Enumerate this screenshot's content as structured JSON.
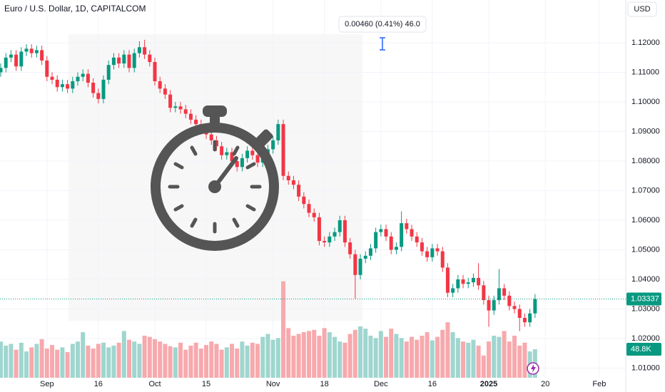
{
  "chart_data": {
    "type": "candlestick",
    "title": "Euro / U.S. Dollar, 1D, CAPITALCOM",
    "currency": "USD",
    "tooltip": "0.00460 (0.41%) 46.0",
    "up_color": "#089981",
    "down_color": "#f23645",
    "up_volume_color": "#9fd6cf",
    "down_volume_color": "#f7a9ad",
    "grid": true,
    "xlim": [
      -0.14,
      121.66
    ],
    "xticks": [
      {
        "value": 9,
        "label": "Sep"
      },
      {
        "value": 19,
        "label": "16"
      },
      {
        "value": 30,
        "label": "Oct"
      },
      {
        "value": 40,
        "label": "15"
      },
      {
        "value": 53,
        "label": "Nov"
      },
      {
        "value": 63,
        "label": "18"
      },
      {
        "value": 74,
        "label": "Dec"
      },
      {
        "value": 84,
        "label": "16"
      },
      {
        "value": 95,
        "label": "2025"
      },
      {
        "value": 106,
        "label": "20"
      },
      {
        "value": 116.5,
        "label": "Feb"
      }
    ],
    "ylim": [
      1.00675,
      1.13446
    ],
    "yticks": [
      {
        "value": 1.12,
        "label": "1.12000"
      },
      {
        "value": 1.11,
        "label": "1.11000"
      },
      {
        "value": 1.1,
        "label": "1.10000"
      },
      {
        "value": 1.09,
        "label": "1.09000"
      },
      {
        "value": 1.08,
        "label": "1.08000"
      },
      {
        "value": 1.07,
        "label": "1.07000"
      },
      {
        "value": 1.06,
        "label": "1.06000"
      },
      {
        "value": 1.05,
        "label": "1.05000"
      },
      {
        "value": 1.04,
        "label": "1.04000"
      },
      {
        "value": 1.03,
        "label": "1.03000"
      },
      {
        "value": 1.02,
        "label": "1.02000"
      },
      {
        "value": 1.01,
        "label": "1.01000"
      }
    ],
    "volume_lim": [
      0,
      183000
    ],
    "last_volume_label": "48.8K",
    "open": [
      1.11,
      1.1115,
      1.115,
      1.116,
      1.112,
      1.117,
      1.118,
      1.1165,
      1.1175,
      1.114,
      1.1085,
      1.1075,
      1.105,
      1.106,
      1.1045,
      1.107,
      1.1085,
      1.1095,
      1.1065,
      1.103,
      1.101,
      1.1075,
      1.1125,
      1.115,
      1.113,
      1.116,
      1.1115,
      1.1165,
      1.1185,
      1.116,
      1.1135,
      1.107,
      1.1045,
      1.1025,
      1.098,
      1.0985,
      1.0975,
      1.096,
      1.094,
      1.0925,
      1.0905,
      1.089,
      1.087,
      1.085,
      1.082,
      1.083,
      1.08,
      1.078,
      1.081,
      1.0835,
      1.082,
      1.0795,
      1.0815,
      1.084,
      1.087,
      1.0925,
      1.075,
      1.0735,
      1.072,
      1.068,
      1.0655,
      1.0625,
      1.061,
      1.053,
      1.0525,
      1.0545,
      1.056,
      1.06,
      1.0525,
      1.0485,
      1.0415,
      1.047,
      1.048,
      1.0505,
      1.056,
      1.057,
      1.0545,
      1.05,
      1.051,
      1.059,
      1.057,
      1.0545,
      1.0525,
      1.0495,
      1.0475,
      1.0505,
      1.0495,
      1.044,
      1.0355,
      1.037,
      1.04,
      1.0385,
      1.039,
      1.0405,
      1.038,
      1.033,
      1.0295,
      1.033,
      1.037,
      1.0345,
      1.031,
      1.03,
      1.027,
      1.0255,
      1.0285
    ],
    "high": [
      1.113,
      1.1165,
      1.1175,
      1.1175,
      1.1185,
      1.1195,
      1.1195,
      1.119,
      1.119,
      1.1155,
      1.11,
      1.109,
      1.1075,
      1.1075,
      1.1085,
      1.11,
      1.111,
      1.111,
      1.108,
      1.1045,
      1.109,
      1.114,
      1.1165,
      1.1165,
      1.1175,
      1.1175,
      1.118,
      1.1205,
      1.121,
      1.1175,
      1.115,
      1.1085,
      1.106,
      1.104,
      1.1,
      1.1,
      1.099,
      1.0975,
      1.0955,
      1.094,
      1.092,
      1.0905,
      1.0885,
      1.0865,
      1.0845,
      1.0845,
      1.0815,
      1.0825,
      1.085,
      1.085,
      1.0835,
      1.083,
      1.0855,
      1.0885,
      1.094,
      1.094,
      1.0765,
      1.075,
      1.0735,
      1.0695,
      1.067,
      1.064,
      1.0625,
      1.0545,
      1.056,
      1.0575,
      1.0615,
      1.0615,
      1.054,
      1.05,
      1.0485,
      1.0495,
      1.052,
      1.0575,
      1.0585,
      1.0585,
      1.056,
      1.0525,
      1.063,
      1.0605,
      1.0585,
      1.056,
      1.054,
      1.051,
      1.052,
      1.052,
      1.051,
      1.0455,
      1.0385,
      1.0415,
      1.0415,
      1.0405,
      1.042,
      1.0455,
      1.0395,
      1.0345,
      1.0345,
      1.0435,
      1.0385,
      1.036,
      1.0325,
      1.0315,
      1.0285,
      1.03,
      1.035
    ],
    "low": [
      1.1085,
      1.11,
      1.1135,
      1.1105,
      1.1105,
      1.1155,
      1.115,
      1.115,
      1.1125,
      1.107,
      1.106,
      1.1035,
      1.1035,
      1.103,
      1.103,
      1.1055,
      1.107,
      1.105,
      1.1015,
      1.0995,
      1.0995,
      1.106,
      1.111,
      1.1115,
      1.1115,
      1.11,
      1.11,
      1.115,
      1.1145,
      1.112,
      1.1055,
      1.103,
      1.101,
      1.0965,
      1.0965,
      1.096,
      1.0945,
      1.0925,
      1.091,
      1.089,
      1.0875,
      1.0855,
      1.0835,
      1.0805,
      1.0805,
      1.0785,
      1.0765,
      1.0765,
      1.0795,
      1.0805,
      1.078,
      1.078,
      1.08,
      1.0825,
      1.0855,
      1.0735,
      1.072,
      1.0705,
      1.0665,
      1.064,
      1.061,
      1.0595,
      1.0515,
      1.051,
      1.051,
      1.053,
      1.0545,
      1.051,
      1.047,
      1.0335,
      1.04,
      1.0455,
      1.0465,
      1.049,
      1.0545,
      1.053,
      1.0485,
      1.0485,
      1.0495,
      1.0555,
      1.053,
      1.051,
      1.048,
      1.046,
      1.046,
      1.048,
      1.0425,
      1.034,
      1.034,
      1.0355,
      1.037,
      1.037,
      1.0375,
      1.0365,
      1.0315,
      1.024,
      1.028,
      1.0315,
      1.033,
      1.0295,
      1.0285,
      1.0225,
      1.024,
      1.024,
      1.027
    ],
    "close": [
      1.1115,
      1.115,
      1.116,
      1.112,
      1.117,
      1.118,
      1.1165,
      1.1175,
      1.114,
      1.1085,
      1.1075,
      1.105,
      1.106,
      1.1045,
      1.107,
      1.1085,
      1.1095,
      1.1065,
      1.103,
      1.101,
      1.1075,
      1.1125,
      1.115,
      1.113,
      1.116,
      1.1115,
      1.1165,
      1.1185,
      1.116,
      1.1135,
      1.107,
      1.1045,
      1.1025,
      1.098,
      1.0985,
      1.0975,
      1.096,
      1.094,
      1.0925,
      1.0905,
      1.089,
      1.087,
      1.085,
      1.082,
      1.083,
      1.08,
      1.078,
      1.081,
      1.0835,
      1.082,
      1.0795,
      1.0815,
      1.084,
      1.087,
      1.0925,
      1.075,
      1.0735,
      1.072,
      1.068,
      1.0655,
      1.0625,
      1.061,
      1.053,
      1.0525,
      1.0545,
      1.056,
      1.06,
      1.0525,
      1.0485,
      1.0415,
      1.047,
      1.048,
      1.0505,
      1.056,
      1.057,
      1.0545,
      1.05,
      1.051,
      1.059,
      1.057,
      1.0545,
      1.0525,
      1.0495,
      1.0475,
      1.0505,
      1.0495,
      1.044,
      1.0355,
      1.037,
      1.04,
      1.0385,
      1.039,
      1.0405,
      1.038,
      1.033,
      1.0295,
      1.033,
      1.037,
      1.0345,
      1.031,
      1.03,
      1.027,
      1.0255,
      1.0285,
      1.03337
    ],
    "volume": [
      62000,
      55000,
      58000,
      48000,
      60000,
      45000,
      52000,
      58000,
      66000,
      50000,
      56000,
      48000,
      52000,
      44000,
      58000,
      62000,
      78000,
      55000,
      50000,
      58000,
      60000,
      52000,
      55000,
      60000,
      80000,
      65000,
      62000,
      58000,
      72000,
      70000,
      66000,
      62000,
      58000,
      54000,
      52000,
      60000,
      48000,
      55000,
      60000,
      50000,
      56000,
      62000,
      58000,
      48000,
      52000,
      58000,
      50000,
      62000,
      55000,
      60000,
      58000,
      70000,
      75000,
      65000,
      68000,
      165000,
      85000,
      72000,
      75000,
      78000,
      80000,
      82000,
      72000,
      85000,
      78000,
      70000,
      62000,
      60000,
      75000,
      82000,
      88000,
      84000,
      72000,
      68000,
      80000,
      70000,
      84000,
      75000,
      68000,
      62000,
      70000,
      65000,
      72000,
      78000,
      64000,
      70000,
      82000,
      95000,
      78000,
      68000,
      62000,
      60000,
      65000,
      55000,
      38000,
      62000,
      72000,
      70000,
      80000,
      62000,
      72000,
      55000,
      60000,
      45000,
      48800
    ]
  }
}
